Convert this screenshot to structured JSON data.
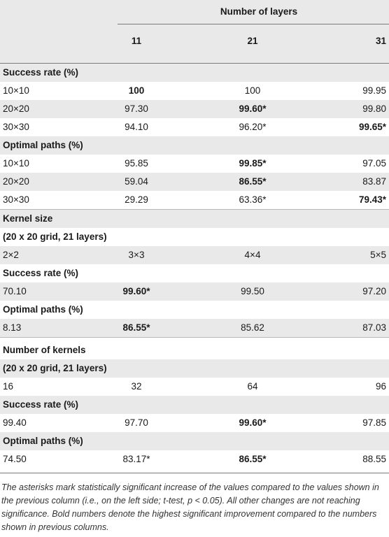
{
  "header": {
    "title": "Number of layers",
    "columns": [
      "11",
      "21",
      "31"
    ]
  },
  "section1": {
    "heading": "Success rate (%)",
    "rows": [
      [
        "10×10",
        "100",
        "100",
        "99.95"
      ],
      [
        "20×20",
        "97.30",
        "99.60*",
        "99.80"
      ],
      [
        "30×30",
        "94.10",
        "96.20*",
        "99.65*"
      ]
    ]
  },
  "section2": {
    "heading": "Optimal paths (%)",
    "rows": [
      [
        "10×10",
        "95.85",
        "99.85*",
        "97.05"
      ],
      [
        "20×20",
        "59.04",
        "86.55*",
        "83.87"
      ],
      [
        "30×30",
        "29.29",
        "63.36*",
        "79.43*"
      ]
    ]
  },
  "kernel_size": {
    "heading": "Kernel size",
    "subheading": "(20 x 20 grid, 21 layers)",
    "values": [
      "2×2",
      "3×3",
      "4×4",
      "5×5"
    ],
    "success_heading": "Success rate (%)",
    "success": [
      "70.10",
      "99.60*",
      "99.50",
      "97.20"
    ],
    "optimal_heading": "Optimal paths (%)",
    "optimal": [
      "8.13",
      "86.55*",
      "85.62",
      "87.03"
    ]
  },
  "num_kernels": {
    "heading": "Number of kernels",
    "subheading": "(20 x 20 grid, 21 layers)",
    "values": [
      "16",
      "32",
      "64",
      "96"
    ],
    "success_heading": "Success rate (%)",
    "success": [
      "99.40",
      "97.70",
      "99.60*",
      "97.85"
    ],
    "optimal_heading": "Optimal paths (%)",
    "optimal": [
      "74.50",
      "83.17*",
      "86.55*",
      "88.55"
    ]
  },
  "footnote": "The asterisks mark statistically significant increase of the values compared to the values shown in the previous column (i.e., on the left side; t-test, p < 0.05). All other changes are not reaching significance. Bold numbers denote the highest significant improvement compared to the numbers shown in previous columns."
}
